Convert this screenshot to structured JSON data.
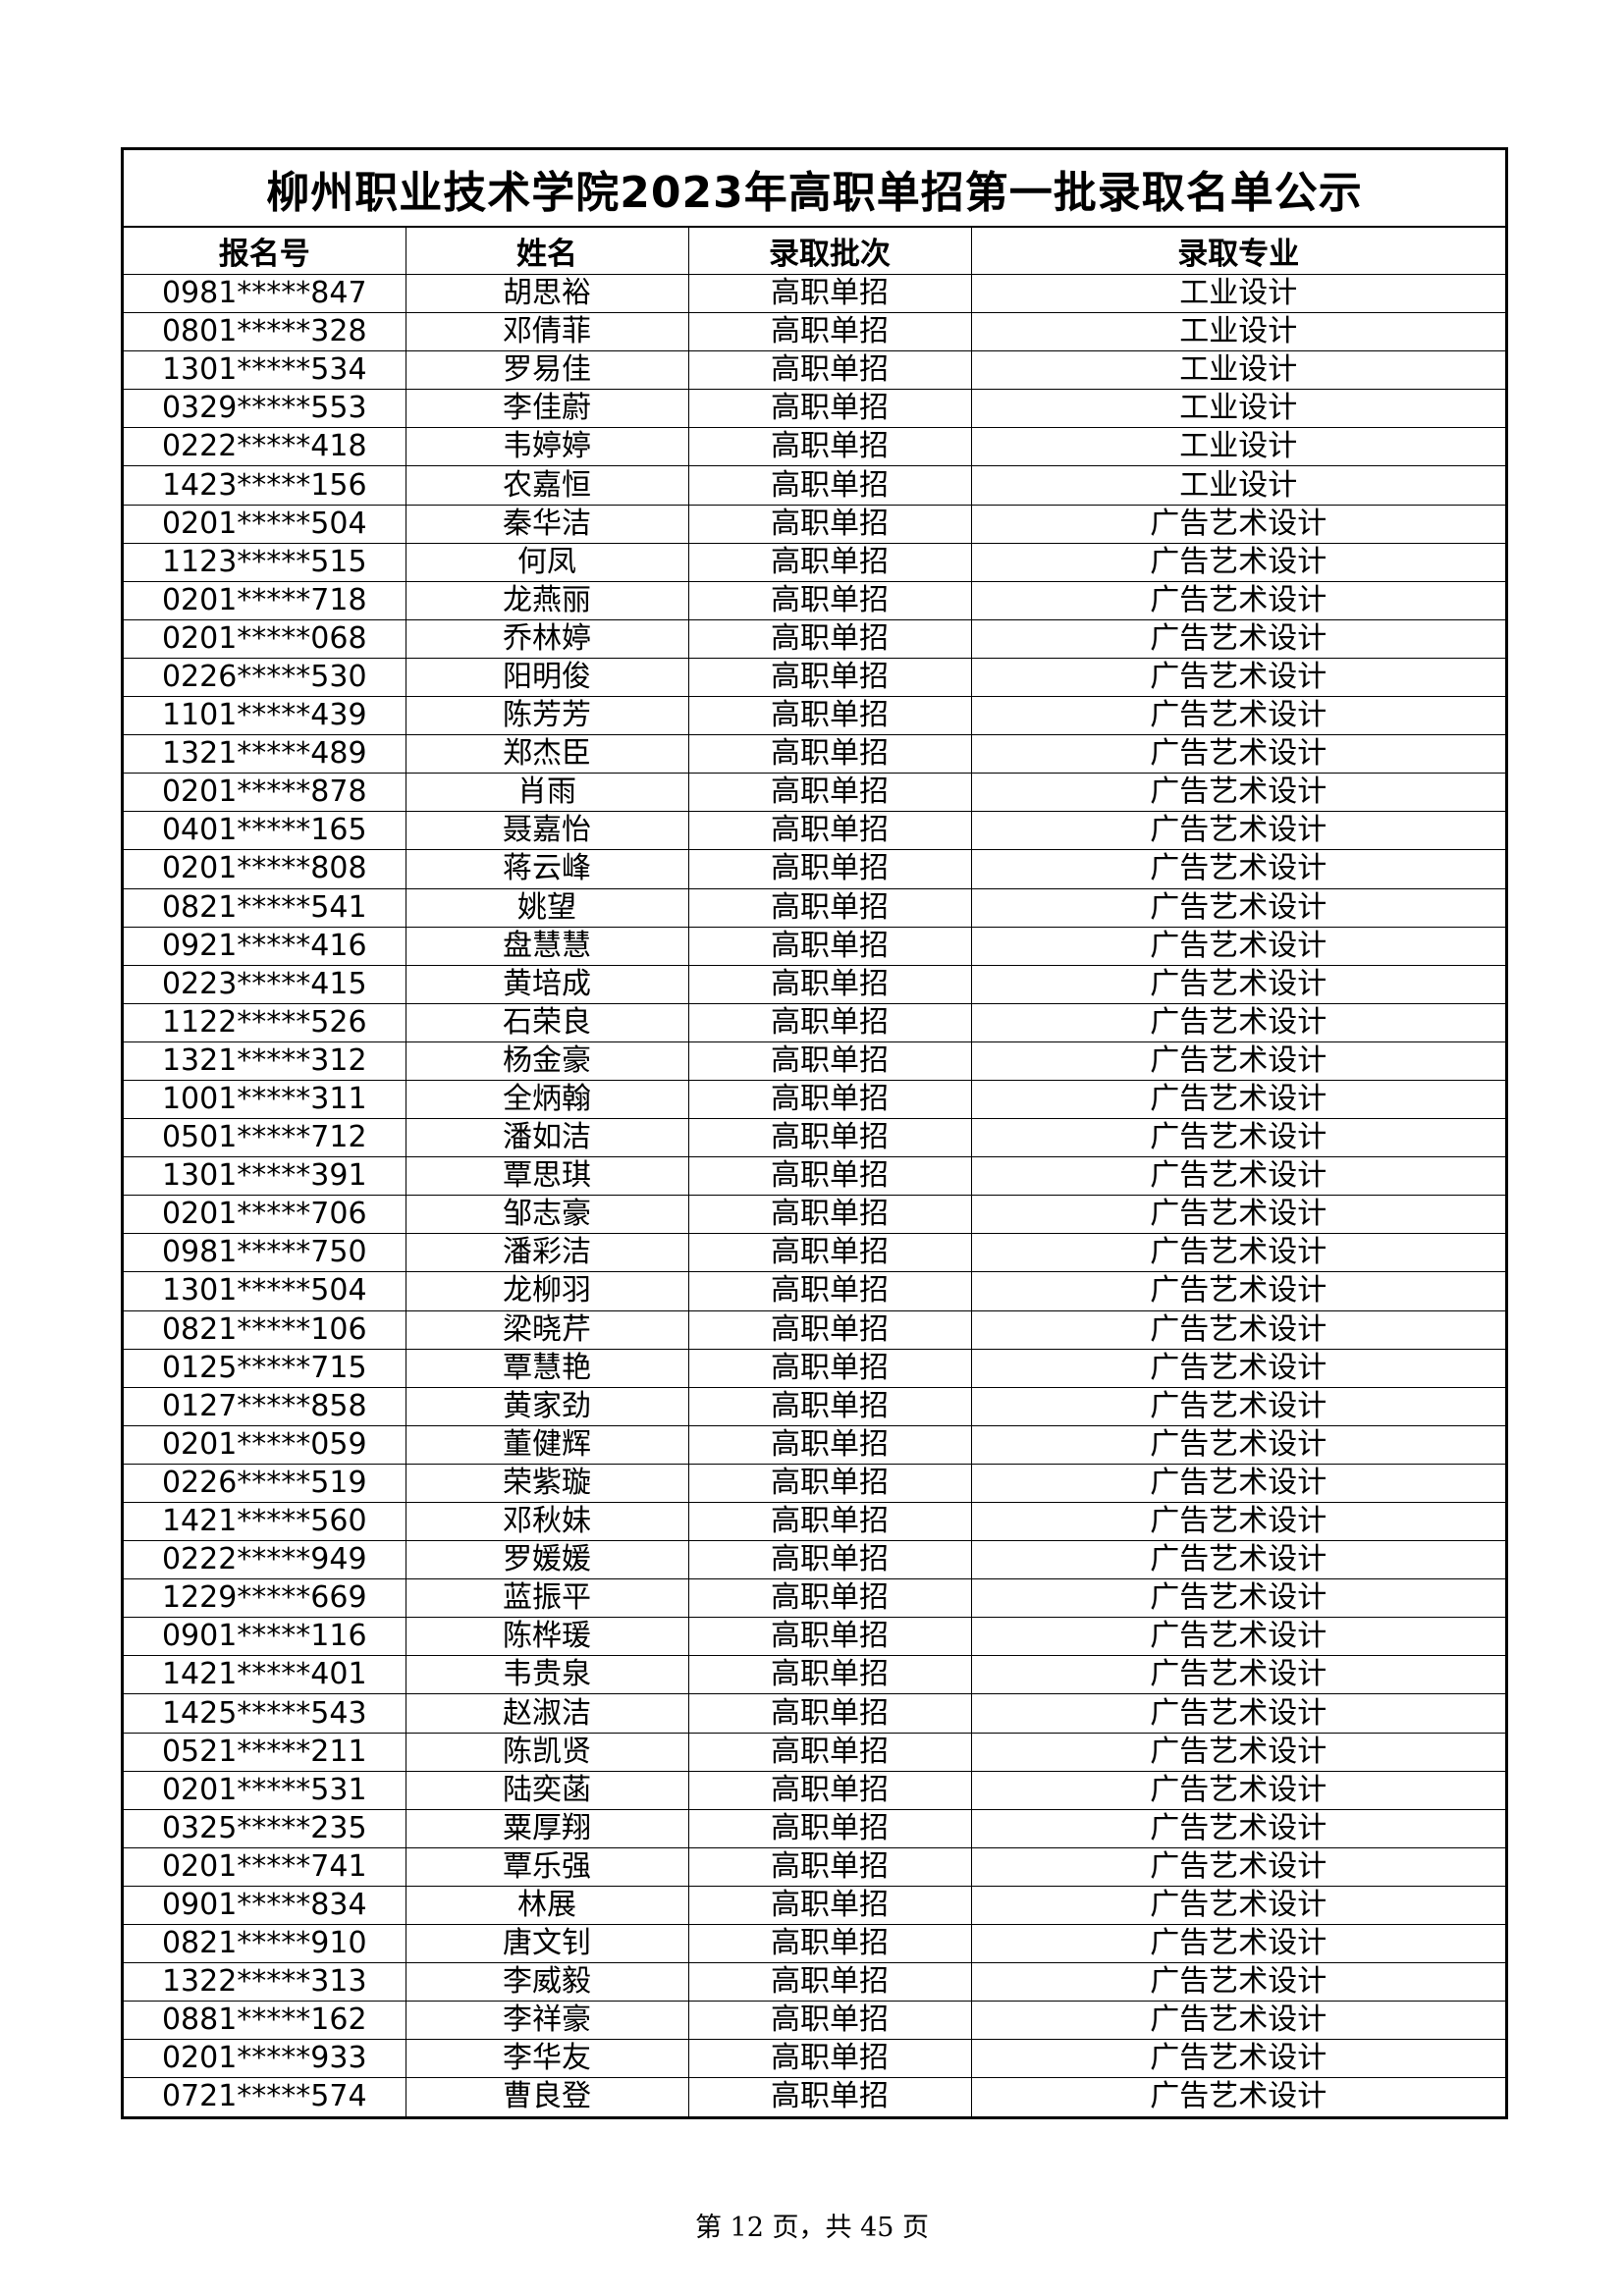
{
  "title": "柳州职业技术学院2023年高职单招第一批录取名单公示",
  "columns": [
    "报名号",
    "姓名",
    "录取批次",
    "录取专业"
  ],
  "rows": [
    [
      "0981*****847",
      "胡思裕",
      "高职单招",
      "工业设计"
    ],
    [
      "0801*****328",
      "邓倩菲",
      "高职单招",
      "工业设计"
    ],
    [
      "1301*****534",
      "罗易佳",
      "高职单招",
      "工业设计"
    ],
    [
      "0329*****553",
      "李佳蔚",
      "高职单招",
      "工业设计"
    ],
    [
      "0222*****418",
      "韦婷婷",
      "高职单招",
      "工业设计"
    ],
    [
      "1423*****156",
      "农嘉恒",
      "高职单招",
      "工业设计"
    ],
    [
      "0201*****504",
      "秦华洁",
      "高职单招",
      "广告艺术设计"
    ],
    [
      "1123*****515",
      "何凤",
      "高职单招",
      "广告艺术设计"
    ],
    [
      "0201*****718",
      "龙燕丽",
      "高职单招",
      "广告艺术设计"
    ],
    [
      "0201*****068",
      "乔林婷",
      "高职单招",
      "广告艺术设计"
    ],
    [
      "0226*****530",
      "阳明俊",
      "高职单招",
      "广告艺术设计"
    ],
    [
      "1101*****439",
      "陈芳芳",
      "高职单招",
      "广告艺术设计"
    ],
    [
      "1321*****489",
      "郑杰臣",
      "高职单招",
      "广告艺术设计"
    ],
    [
      "0201*****878",
      "肖雨",
      "高职单招",
      "广告艺术设计"
    ],
    [
      "0401*****165",
      "聂嘉怡",
      "高职单招",
      "广告艺术设计"
    ],
    [
      "0201*****808",
      "蒋云峰",
      "高职单招",
      "广告艺术设计"
    ],
    [
      "0821*****541",
      "姚望",
      "高职单招",
      "广告艺术设计"
    ],
    [
      "0921*****416",
      "盘慧慧",
      "高职单招",
      "广告艺术设计"
    ],
    [
      "0223*****415",
      "黄培成",
      "高职单招",
      "广告艺术设计"
    ],
    [
      "1122*****526",
      "石荣良",
      "高职单招",
      "广告艺术设计"
    ],
    [
      "1321*****312",
      "杨金豪",
      "高职单招",
      "广告艺术设计"
    ],
    [
      "1001*****311",
      "全炳翰",
      "高职单招",
      "广告艺术设计"
    ],
    [
      "0501*****712",
      "潘如洁",
      "高职单招",
      "广告艺术设计"
    ],
    [
      "1301*****391",
      "覃思琪",
      "高职单招",
      "广告艺术设计"
    ],
    [
      "0201*****706",
      "邹志豪",
      "高职单招",
      "广告艺术设计"
    ],
    [
      "0981*****750",
      "潘彩洁",
      "高职单招",
      "广告艺术设计"
    ],
    [
      "1301*****504",
      "龙柳羽",
      "高职单招",
      "广告艺术设计"
    ],
    [
      "0821*****106",
      "梁晓芹",
      "高职单招",
      "广告艺术设计"
    ],
    [
      "0125*****715",
      "覃慧艳",
      "高职单招",
      "广告艺术设计"
    ],
    [
      "0127*****858",
      "黄家劲",
      "高职单招",
      "广告艺术设计"
    ],
    [
      "0201*****059",
      "董健辉",
      "高职单招",
      "广告艺术设计"
    ],
    [
      "0226*****519",
      "荣紫璇",
      "高职单招",
      "广告艺术设计"
    ],
    [
      "1421*****560",
      "邓秋妹",
      "高职单招",
      "广告艺术设计"
    ],
    [
      "0222*****949",
      "罗媛媛",
      "高职单招",
      "广告艺术设计"
    ],
    [
      "1229*****669",
      "蓝振平",
      "高职单招",
      "广告艺术设计"
    ],
    [
      "0901*****116",
      "陈桦瑗",
      "高职单招",
      "广告艺术设计"
    ],
    [
      "1421*****401",
      "韦贵泉",
      "高职单招",
      "广告艺术设计"
    ],
    [
      "1425*****543",
      "赵淑洁",
      "高职单招",
      "广告艺术设计"
    ],
    [
      "0521*****211",
      "陈凯贤",
      "高职单招",
      "广告艺术设计"
    ],
    [
      "0201*****531",
      "陆奕菡",
      "高职单招",
      "广告艺术设计"
    ],
    [
      "0325*****235",
      "粟厚翔",
      "高职单招",
      "广告艺术设计"
    ],
    [
      "0201*****741",
      "覃乐强",
      "高职单招",
      "广告艺术设计"
    ],
    [
      "0901*****834",
      "林展",
      "高职单招",
      "广告艺术设计"
    ],
    [
      "0821*****910",
      "唐文钊",
      "高职单招",
      "广告艺术设计"
    ],
    [
      "1322*****313",
      "李威毅",
      "高职单招",
      "广告艺术设计"
    ],
    [
      "0881*****162",
      "李祥豪",
      "高职单招",
      "广告艺术设计"
    ],
    [
      "0201*****933",
      "李华友",
      "高职单招",
      "广告艺术设计"
    ],
    [
      "0721*****574",
      "曹良登",
      "高职单招",
      "广告艺术设计"
    ]
  ],
  "footer": "第 12 页，共 45 页"
}
